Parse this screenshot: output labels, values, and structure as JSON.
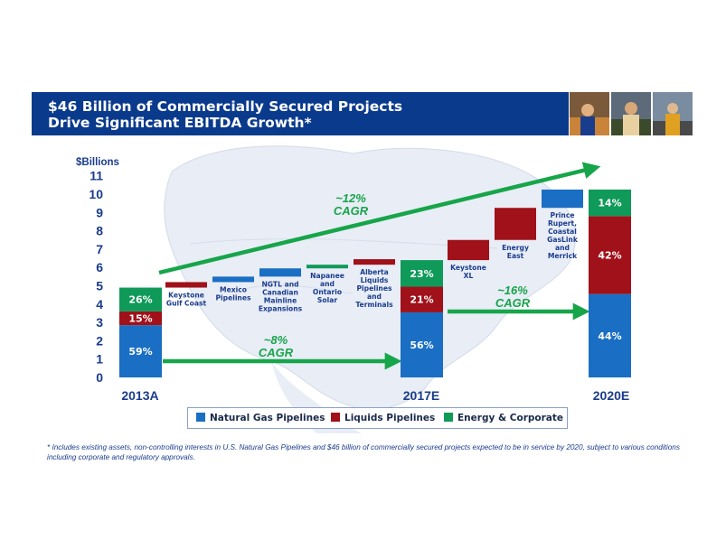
{
  "header": {
    "title_line1": "$46 Billion of Commercially Secured Projects",
    "title_line2": "Drive Significant EBITDA Growth*"
  },
  "photos": [
    "worker-photo",
    "worker-photo",
    "worker-photo"
  ],
  "chart_data": {
    "type": "bar",
    "ylabel": "$Billions",
    "ylim": [
      0,
      11
    ],
    "yticks": [
      0,
      1,
      2,
      3,
      4,
      5,
      6,
      7,
      8,
      9,
      10,
      11
    ],
    "stacks": [
      {
        "label": "2013A",
        "segments": [
          {
            "series": "Natural Gas Pipelines",
            "value": 2.85,
            "pct": "59%"
          },
          {
            "series": "Liquids Pipelines",
            "value": 0.75,
            "pct": "15%"
          },
          {
            "series": "Energy & Corporate",
            "value": 1.3,
            "pct": "26%"
          }
        ]
      },
      {
        "label": "2017E",
        "segments": [
          {
            "series": "Natural Gas Pipelines",
            "value": 3.55,
            "pct": "56%"
          },
          {
            "series": "Liquids Pipelines",
            "value": 1.4,
            "pct": "21%"
          },
          {
            "series": "Energy & Corporate",
            "value": 1.45,
            "pct": "23%"
          }
        ]
      },
      {
        "label": "2020E",
        "segments": [
          {
            "series": "Natural Gas Pipelines",
            "value": 4.55,
            "pct": "44%"
          },
          {
            "series": "Liquids Pipelines",
            "value": 4.25,
            "pct": "42%"
          },
          {
            "series": "Energy & Corporate",
            "value": 1.45,
            "pct": "14%"
          }
        ]
      }
    ],
    "waterfall": [
      {
        "label": "Keystone\nGulf Coast",
        "series": "Liquids Pipelines",
        "base": 4.9,
        "value": 0.3
      },
      {
        "label": "Mexico\nPipelines",
        "series": "Natural Gas Pipelines",
        "base": 5.2,
        "value": 0.3
      },
      {
        "label": "NGTL and\nCanadian\nMainline\nExpansions",
        "series": "Natural Gas Pipelines",
        "base": 5.5,
        "value": 0.45
      },
      {
        "label": "Napanee\nand\nOntario\nSolar",
        "series": "Energy & Corporate",
        "base": 5.95,
        "value": 0.2
      },
      {
        "label": "Alberta\nLiquids\nPipelines\nand\nTerminals",
        "series": "Liquids Pipelines",
        "base": 6.15,
        "value": 0.3
      },
      {
        "label": "Keystone\nXL",
        "series": "Liquids Pipelines",
        "base": 6.4,
        "value": 1.1
      },
      {
        "label": "Energy\nEast",
        "series": "Liquids Pipelines",
        "base": 7.5,
        "value": 1.75
      },
      {
        "label": "Prince\nRupert,\nCoastal\nGasLink\nand\nMerrick",
        "series": "Natural Gas Pipelines",
        "base": 9.25,
        "value": 1.0
      }
    ],
    "cagr": [
      {
        "label_line1": "~8%",
        "label_line2": "CAGR"
      },
      {
        "label_line1": "~16%",
        "label_line2": "CAGR"
      },
      {
        "label_line1": "~12%",
        "label_line2": "CAGR"
      }
    ],
    "legend": [
      {
        "label": "Natural Gas Pipelines",
        "color": "#1a6fc4"
      },
      {
        "label": "Liquids Pipelines",
        "color": "#a0111a"
      },
      {
        "label": "Energy & Corporate",
        "color": "#0f9a5a"
      }
    ],
    "colors": {
      "Natural Gas Pipelines": "#1a6fc4",
      "Liquids Pipelines": "#a0111a",
      "Energy & Corporate": "#0f9a5a",
      "arrow": "#17a54a",
      "axis_text": "#1a3c8c"
    }
  },
  "footnote": "* Includes existing assets, non-controlling interests in U.S. Natural Gas Pipelines and $46 billion of commercially secured projects expected to be in service by 2020, subject to various conditions including corporate and regulatory approvals."
}
